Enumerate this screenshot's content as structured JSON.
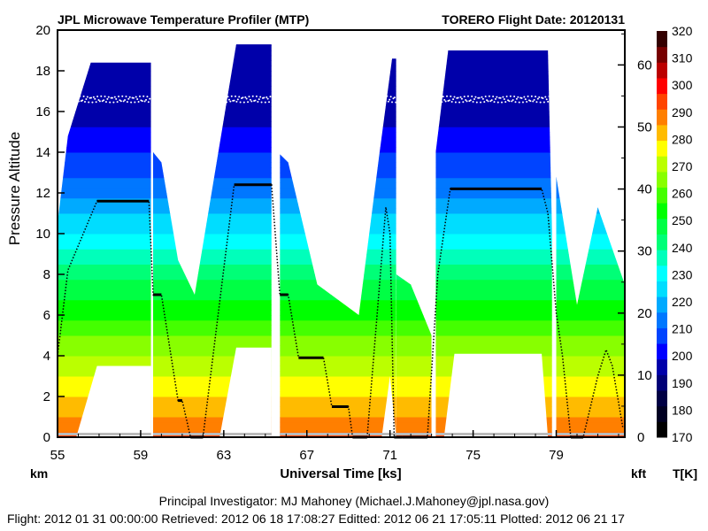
{
  "chart_data": {
    "type": "heatmap",
    "title_left": "JPL Microwave Temperature Profiler (MTP)",
    "title_right": "TORERO  Flight Date: 20120131",
    "xlabel": "Universal Time [ks]",
    "ylabel": "Pressure Altitude",
    "y_unit_left": "km",
    "y_unit_right": "kft",
    "colorbar_label": "T[K]",
    "xlim": [
      55,
      82.3
    ],
    "ylim": [
      0,
      20
    ],
    "x_ticks": [
      55,
      59,
      63,
      67,
      71,
      75,
      79
    ],
    "y_ticks": [
      0,
      2,
      4,
      6,
      8,
      10,
      12,
      14,
      16,
      18,
      20
    ],
    "kft_ticks": [
      0,
      10,
      20,
      30,
      40,
      50,
      60
    ],
    "colorbar_ticks": [
      170,
      180,
      190,
      200,
      210,
      220,
      230,
      240,
      250,
      260,
      270,
      280,
      290,
      300,
      310,
      320
    ],
    "colorbar_range": [
      170,
      320
    ],
    "colormap": [
      "#000000",
      "#000022",
      "#000044",
      "#000077",
      "#0000aa",
      "#0000ff",
      "#0044ff",
      "#0077ff",
      "#00aaff",
      "#00ddff",
      "#00ffff",
      "#00ffbb",
      "#00ff77",
      "#00ff44",
      "#00ff00",
      "#44ff00",
      "#88ff00",
      "#bbff00",
      "#ffff00",
      "#ffbb00",
      "#ff7f00",
      "#ff4400",
      "#ff0000",
      "#bb0000",
      "#770000",
      "#330000"
    ],
    "temperature_profile_K": {
      "altitude_km": [
        0,
        4,
        8,
        12,
        14,
        16,
        20
      ],
      "T": [
        292,
        268,
        243,
        214,
        204,
        196,
        194
      ]
    },
    "segments": [
      {
        "top": [
          [
            55.0,
            10.5
          ],
          [
            55.5,
            14.8
          ],
          [
            56.6,
            18.4
          ],
          [
            59.5,
            18.4
          ]
        ],
        "blank": [
          [
            55.9,
            0
          ],
          [
            56.9,
            3.5
          ],
          [
            59.5,
            3.5
          ],
          [
            59.5,
            0
          ]
        ]
      },
      {
        "top": [
          [
            59.6,
            14.0
          ],
          [
            60.0,
            13.5
          ],
          [
            60.8,
            8.7
          ],
          [
            61.6,
            7.0
          ],
          [
            63.6,
            19.3
          ],
          [
            65.3,
            19.3
          ]
        ],
        "blank": [
          [
            62.8,
            0
          ],
          [
            63.6,
            4.4
          ],
          [
            65.3,
            4.4
          ],
          [
            65.3,
            0
          ]
        ]
      },
      {
        "top": [
          [
            65.7,
            13.9
          ],
          [
            66.1,
            13.5
          ],
          [
            67.5,
            7.5
          ],
          [
            69.5,
            6.0
          ],
          [
            70.5,
            14.0
          ],
          [
            71.1,
            18.6
          ],
          [
            71.3,
            18.6
          ]
        ],
        "blank": [
          [
            70.6,
            0
          ],
          [
            71.0,
            3.0
          ],
          [
            71.3,
            0
          ]
        ]
      },
      {
        "top": [
          [
            71.3,
            8.0
          ],
          [
            72.0,
            7.5
          ],
          [
            73.0,
            5.0
          ]
        ],
        "blank": []
      },
      {
        "top": [
          [
            73.2,
            14.0
          ],
          [
            73.8,
            19.0
          ],
          [
            78.6,
            19.0
          ],
          [
            78.8,
            10.0
          ]
        ],
        "blank": [
          [
            73.6,
            0
          ],
          [
            74.1,
            4.1
          ],
          [
            78.3,
            4.1
          ],
          [
            78.6,
            0
          ]
        ]
      },
      {
        "top": [
          [
            79.0,
            12.8
          ],
          [
            80.0,
            6.5
          ],
          [
            81.0,
            11.3
          ],
          [
            82.3,
            7.5
          ]
        ],
        "blank": []
      }
    ],
    "flight_track_km": [
      [
        55.0,
        4.0
      ],
      [
        55.5,
        8.2
      ],
      [
        56.9,
        11.6
      ],
      [
        59.4,
        11.6
      ],
      [
        59.6,
        7.0
      ],
      [
        60.0,
        7.0
      ],
      [
        60.8,
        1.8
      ],
      [
        61.0,
        1.8
      ],
      [
        61.4,
        0
      ],
      [
        62.0,
        0
      ],
      [
        63.5,
        12.4
      ],
      [
        65.3,
        12.4
      ],
      [
        65.7,
        7.0
      ],
      [
        66.1,
        7.0
      ],
      [
        66.6,
        3.9
      ],
      [
        67.8,
        3.9
      ],
      [
        68.2,
        1.5
      ],
      [
        69.0,
        1.5
      ],
      [
        69.2,
        0
      ],
      [
        69.9,
        0
      ],
      [
        70.8,
        11.3
      ],
      [
        71.0,
        10.0
      ],
      [
        71.2,
        0
      ],
      [
        71.6,
        0
      ],
      [
        72.8,
        0
      ],
      [
        73.3,
        8.0
      ],
      [
        73.9,
        12.2
      ],
      [
        78.3,
        12.2
      ],
      [
        78.6,
        11.0
      ],
      [
        79.0,
        6.1
      ],
      [
        79.3,
        4.0
      ],
      [
        79.7,
        0
      ],
      [
        80.3,
        0
      ],
      [
        81.0,
        3.0
      ],
      [
        81.4,
        4.3
      ],
      [
        81.7,
        3.5
      ],
      [
        82.2,
        0.5
      ]
    ],
    "tropopause_points_km": 16.6
  },
  "footer": {
    "pi": "Principal Investigator: MJ Mahoney (Michael.J.Mahoney@jpl.nasa.gov)",
    "dates": "Flight: 2012 01 31 00:00:00   Retrieved: 2012 06 18 17:08:27   Editted: 2012 06 21 17:05:11  Plotted: 2012 06 21 17"
  }
}
